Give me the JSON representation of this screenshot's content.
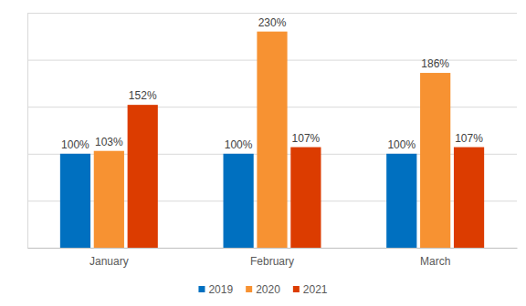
{
  "chart_data": {
    "type": "bar",
    "categories": [
      "January",
      "February",
      "March"
    ],
    "series": [
      {
        "name": "2019",
        "color": "#0070c0",
        "values": [
          100,
          100,
          100
        ],
        "value_labels": [
          "100%",
          "100%",
          "100%"
        ]
      },
      {
        "name": "2020",
        "color": "#f79232",
        "values": [
          103,
          230,
          186
        ],
        "value_labels": [
          "103%",
          "230%",
          "186%"
        ]
      },
      {
        "name": "2021",
        "color": "#dc3c00",
        "values": [
          152,
          107,
          107
        ],
        "value_labels": [
          "152%",
          "107%",
          "107%"
        ]
      }
    ],
    "ylim": [
      0,
      250
    ],
    "yticks": [
      0,
      50,
      100,
      150,
      200,
      250
    ],
    "grid": true,
    "legend": "bottom",
    "data_labels": true,
    "tick_labels": "x"
  }
}
